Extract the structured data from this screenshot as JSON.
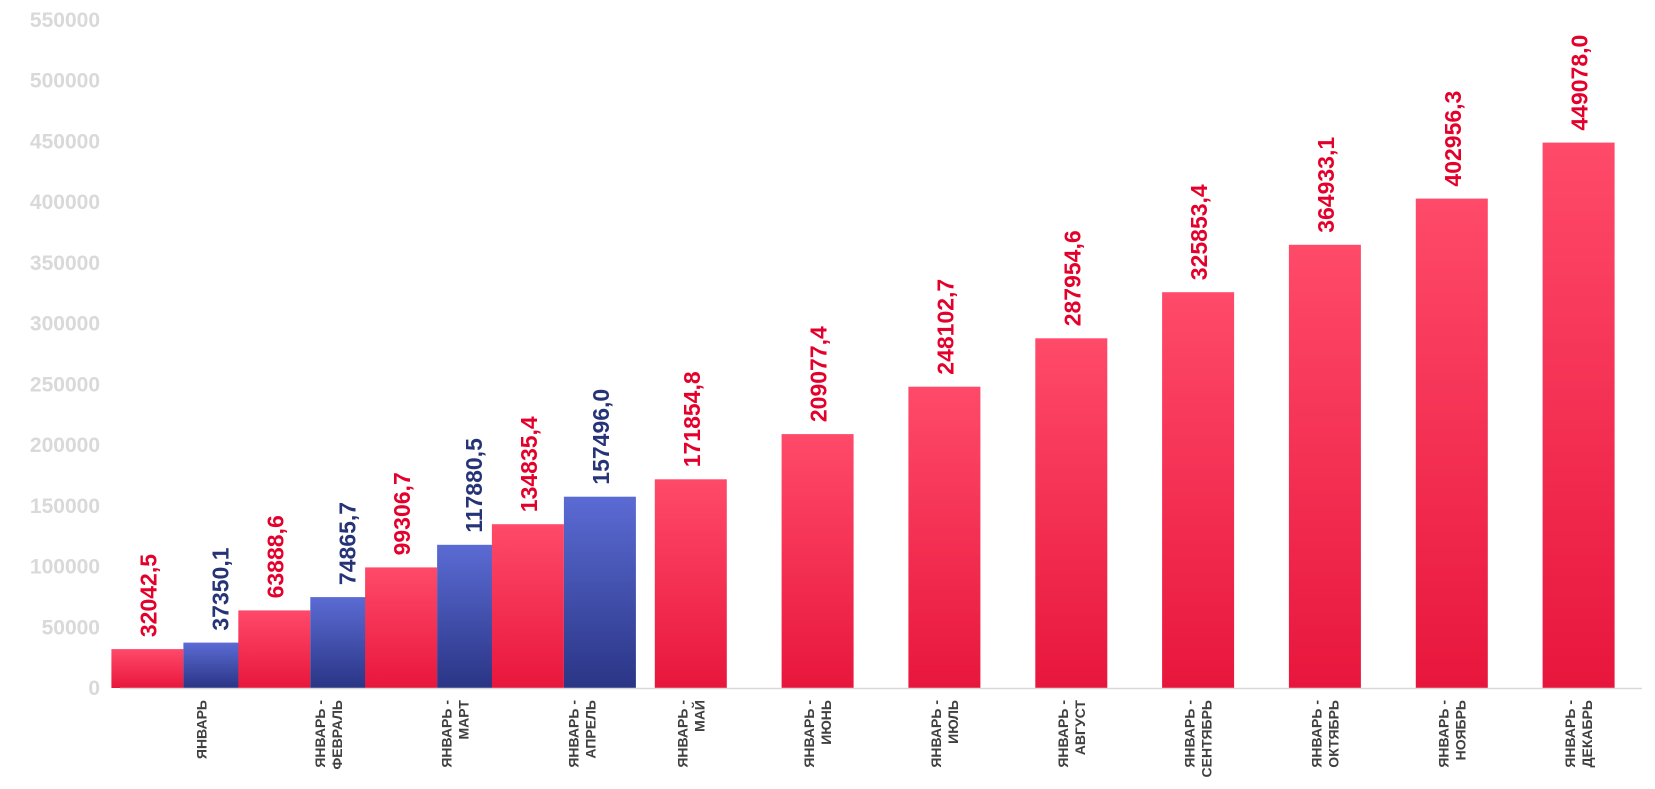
{
  "chart_data": {
    "type": "bar",
    "title": "",
    "xlabel": "",
    "ylabel": "",
    "ylim": [
      0,
      550000
    ],
    "yticks": [
      0,
      50000,
      100000,
      150000,
      200000,
      250000,
      300000,
      350000,
      400000,
      450000,
      500000,
      550000
    ],
    "grid": false,
    "legend": "none",
    "categories": [
      [
        "ЯНВАРЬ"
      ],
      [
        "ЯНВАРЬ -",
        "ФЕВРАЛЬ"
      ],
      [
        "ЯНВАРЬ -",
        "МАРТ"
      ],
      [
        "ЯНВАРЬ -",
        "АПРЕЛЬ"
      ],
      [
        "ЯНВАРЬ -",
        "МАЙ"
      ],
      [
        "ЯНВАРЬ -",
        "ИЮНЬ"
      ],
      [
        "ЯНВАРЬ -",
        "ИЮЛЬ"
      ],
      [
        "ЯНВАРЬ -",
        "АВГУСТ"
      ],
      [
        "ЯНВАРЬ -",
        "СЕНТЯБРЬ"
      ],
      [
        "ЯНВАРЬ -",
        "ОКТЯБРЬ"
      ],
      [
        "ЯНВАРЬ -",
        "НОЯБРЬ"
      ],
      [
        "ЯНВАРЬ -",
        "ДЕКАБРЬ"
      ]
    ],
    "series": [
      {
        "color": "#e8163c",
        "color_top": "#ff4a6a",
        "label_color": "#e4002b",
        "values": [
          32042.5,
          63888.6,
          99306.7,
          134835.4,
          171854.8,
          209077.4,
          248102.7,
          287954.6,
          325853.4,
          364933.1,
          402956.3,
          449078.0
        ],
        "labels": [
          "32042,5",
          "63888,6",
          "99306,7",
          "134835,4",
          "171854,8",
          "209077,4",
          "248102,7",
          "287954,6",
          "325853,4",
          "364933,1",
          "402956,3",
          "449078,0"
        ]
      },
      {
        "color": "#2a3585",
        "color_top": "#5b6bd4",
        "label_color": "#263477",
        "values": [
          37350.1,
          74865.7,
          117880.5,
          157496.0,
          null,
          null,
          null,
          null,
          null,
          null,
          null,
          null
        ],
        "labels": [
          "37350,1",
          "74865,7",
          "117880,5",
          "157496,0",
          null,
          null,
          null,
          null,
          null,
          null,
          null,
          null
        ]
      }
    ]
  }
}
